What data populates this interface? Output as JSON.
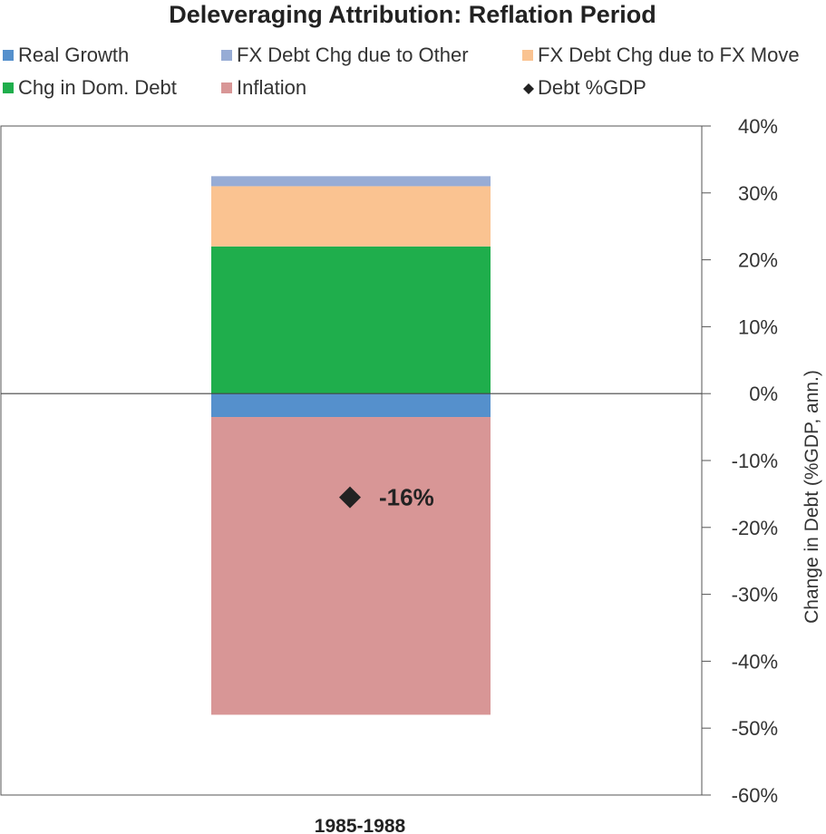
{
  "chart_data": {
    "type": "bar",
    "stacked": true,
    "title": "Deleveraging Attribution: Reflation Period",
    "categories": [
      "1985-1988"
    ],
    "ylabel": "Change in Debt (%GDP, ann.)",
    "ylim": [
      -60,
      40
    ],
    "yticks": [
      "40%",
      "30%",
      "20%",
      "10%",
      "0%",
      "-10%",
      "-20%",
      "-30%",
      "-40%",
      "-50%",
      "-60%"
    ],
    "y_axis_side": "right",
    "legend_position": "top",
    "series": [
      {
        "name": "Real Growth",
        "color": "#5590cc",
        "values": [
          -3.5
        ]
      },
      {
        "name": "FX Debt Chg due to Other",
        "color": "#97acd5",
        "values": [
          1.5
        ]
      },
      {
        "name": "FX Debt Chg due to FX Move",
        "color": "#fac391",
        "values": [
          9
        ]
      },
      {
        "name": "Chg in Dom. Debt",
        "color": "#1fae4c",
        "values": [
          22
        ]
      },
      {
        "name": "Inflation",
        "color": "#d89696",
        "values": [
          -44.5
        ]
      }
    ],
    "markers": [
      {
        "name": "Debt %GDP",
        "color": "#222222",
        "shape": "diamond",
        "values": [
          -15.5
        ],
        "label": "-16%"
      }
    ]
  }
}
